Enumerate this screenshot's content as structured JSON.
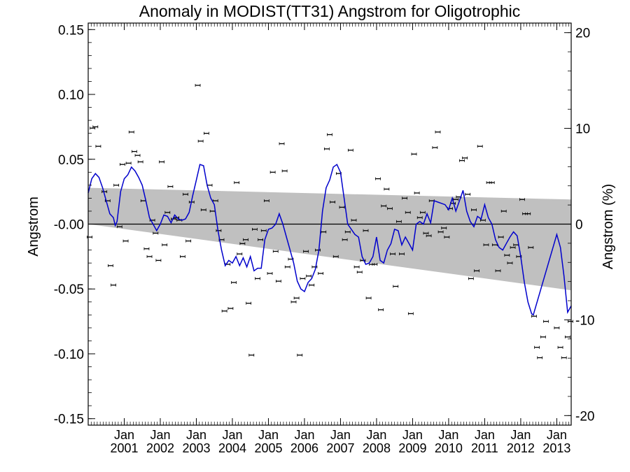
{
  "chart_data": {
    "type": "scatter",
    "title": "Anomaly in MODIST(TT31) Angstrom for Oligotrophic",
    "ylabel": "Angstrom",
    "y2label": "Angstrom (%)",
    "xlim": [
      2000.0,
      2013.4
    ],
    "ylim": [
      -0.155,
      0.155
    ],
    "y2lim": [
      -21,
      21
    ],
    "yticks": [
      "0.15",
      "0.10",
      "0.05",
      "-0.00",
      "-0.05",
      "-0.10",
      "-0.15"
    ],
    "y2ticks": [
      "20",
      "10",
      "0",
      "-10",
      "-20"
    ],
    "xtick_labels": [
      {
        "month": "Jan",
        "year": "2001"
      },
      {
        "month": "Jan",
        "year": "2002"
      },
      {
        "month": "Jan",
        "year": "2003"
      },
      {
        "month": "Jan",
        "year": "2004"
      },
      {
        "month": "Jan",
        "year": "2005"
      },
      {
        "month": "Jan",
        "year": "2006"
      },
      {
        "month": "Jan",
        "year": "2007"
      },
      {
        "month": "Jan",
        "year": "2008"
      },
      {
        "month": "Jan",
        "year": "2009"
      },
      {
        "month": "Jan",
        "year": "2010"
      },
      {
        "month": "Jan",
        "year": "2011"
      },
      {
        "month": "Jan",
        "year": "2012"
      },
      {
        "month": "Jan",
        "year": "2013"
      }
    ],
    "zero_line": 0,
    "trend_band": {
      "upper": [
        [
          2000.0,
          0.028
        ],
        [
          2013.4,
          0.019
        ]
      ],
      "lower": [
        [
          2000.0,
          0.0
        ],
        [
          2013.4,
          -0.051
        ]
      ],
      "color": "#c0c0c0"
    },
    "smoothed_series": {
      "color": "#0000cc",
      "points": [
        [
          2000.0,
          0.024
        ],
        [
          2000.1,
          0.035
        ],
        [
          2000.2,
          0.039
        ],
        [
          2000.3,
          0.036
        ],
        [
          2000.4,
          0.028
        ],
        [
          2000.5,
          0.018
        ],
        [
          2000.6,
          0.008
        ],
        [
          2000.7,
          0.005
        ],
        [
          2000.75,
          -0.001
        ],
        [
          2000.8,
          0.002
        ],
        [
          2000.9,
          0.025
        ],
        [
          2001.0,
          0.035
        ],
        [
          2001.1,
          0.038
        ],
        [
          2001.2,
          0.044
        ],
        [
          2001.3,
          0.041
        ],
        [
          2001.4,
          0.036
        ],
        [
          2001.5,
          0.03
        ],
        [
          2001.6,
          0.018
        ],
        [
          2001.7,
          0.005
        ],
        [
          2001.8,
          0.0
        ],
        [
          2001.9,
          -0.005
        ],
        [
          2002.0,
          0.0
        ],
        [
          2002.1,
          0.007
        ],
        [
          2002.2,
          0.006
        ],
        [
          2002.3,
          0.001
        ],
        [
          2002.4,
          0.007
        ],
        [
          2002.5,
          0.004
        ],
        [
          2002.6,
          0.003
        ],
        [
          2002.7,
          0.004
        ],
        [
          2002.8,
          0.009
        ],
        [
          2002.9,
          0.022
        ],
        [
          2003.0,
          0.034
        ],
        [
          2003.1,
          0.046
        ],
        [
          2003.2,
          0.045
        ],
        [
          2003.3,
          0.03
        ],
        [
          2003.4,
          0.02
        ],
        [
          2003.5,
          0.015
        ],
        [
          2003.6,
          -0.005
        ],
        [
          2003.7,
          -0.02
        ],
        [
          2003.8,
          -0.032
        ],
        [
          2003.9,
          -0.028
        ],
        [
          2004.0,
          -0.03
        ],
        [
          2004.1,
          -0.025
        ],
        [
          2004.2,
          -0.032
        ],
        [
          2004.3,
          -0.026
        ],
        [
          2004.4,
          -0.033
        ],
        [
          2004.5,
          -0.025
        ],
        [
          2004.6,
          -0.036
        ],
        [
          2004.7,
          -0.034
        ],
        [
          2004.8,
          -0.034
        ],
        [
          2004.9,
          -0.012
        ],
        [
          2005.0,
          -0.004
        ],
        [
          2005.1,
          -0.003
        ],
        [
          2005.2,
          0.0
        ],
        [
          2005.3,
          0.008
        ],
        [
          2005.4,
          0.0
        ],
        [
          2005.5,
          -0.01
        ],
        [
          2005.6,
          -0.02
        ],
        [
          2005.7,
          -0.03
        ],
        [
          2005.8,
          -0.044
        ],
        [
          2005.9,
          -0.05
        ],
        [
          2006.0,
          -0.052
        ],
        [
          2006.1,
          -0.045
        ],
        [
          2006.2,
          -0.042
        ],
        [
          2006.3,
          -0.035
        ],
        [
          2006.4,
          -0.02
        ],
        [
          2006.5,
          0.01
        ],
        [
          2006.6,
          0.028
        ],
        [
          2006.7,
          0.034
        ],
        [
          2006.8,
          0.044
        ],
        [
          2006.9,
          0.046
        ],
        [
          2007.0,
          0.04
        ],
        [
          2007.1,
          0.02
        ],
        [
          2007.2,
          0.0
        ],
        [
          2007.3,
          -0.004
        ],
        [
          2007.4,
          -0.008
        ],
        [
          2007.5,
          -0.01
        ],
        [
          2007.6,
          -0.025
        ],
        [
          2007.7,
          -0.031
        ],
        [
          2007.8,
          -0.03
        ],
        [
          2007.9,
          -0.025
        ],
        [
          2008.0,
          -0.01
        ],
        [
          2008.1,
          -0.028
        ],
        [
          2008.2,
          -0.03
        ],
        [
          2008.3,
          -0.02
        ],
        [
          2008.4,
          -0.015
        ],
        [
          2008.5,
          -0.004
        ],
        [
          2008.6,
          -0.005
        ],
        [
          2008.7,
          -0.016
        ],
        [
          2008.8,
          -0.01
        ],
        [
          2008.9,
          -0.015
        ],
        [
          2009.0,
          -0.02
        ],
        [
          2009.1,
          0.0
        ],
        [
          2009.2,
          0.002
        ],
        [
          2009.3,
          0.0
        ],
        [
          2009.4,
          0.008
        ],
        [
          2009.5,
          0.001
        ],
        [
          2009.6,
          0.018
        ],
        [
          2009.7,
          0.017
        ],
        [
          2009.8,
          0.016
        ],
        [
          2009.9,
          0.015
        ],
        [
          2010.0,
          0.011
        ],
        [
          2010.1,
          0.02
        ],
        [
          2010.2,
          0.01
        ],
        [
          2010.3,
          0.018
        ],
        [
          2010.4,
          0.026
        ],
        [
          2010.5,
          0.01
        ],
        [
          2010.6,
          0.002
        ],
        [
          2010.7,
          -0.002
        ],
        [
          2010.8,
          0.006
        ],
        [
          2010.9,
          0.004
        ],
        [
          2011.0,
          0.015
        ],
        [
          2011.1,
          0.005
        ],
        [
          2011.2,
          0.0
        ],
        [
          2011.3,
          -0.012
        ],
        [
          2011.4,
          -0.018
        ],
        [
          2011.5,
          -0.02
        ],
        [
          2011.6,
          -0.015
        ],
        [
          2011.7,
          -0.01
        ],
        [
          2011.8,
          -0.006
        ],
        [
          2011.9,
          -0.009
        ],
        [
          2012.0,
          -0.025
        ],
        [
          2012.1,
          -0.045
        ],
        [
          2012.2,
          -0.06
        ],
        [
          2012.3,
          -0.069
        ],
        [
          2012.35,
          -0.07
        ],
        [
          2013.0,
          -0.008
        ],
        [
          2013.1,
          -0.018
        ],
        [
          2013.2,
          -0.04
        ],
        [
          2013.3,
          -0.068
        ],
        [
          2013.4,
          -0.063
        ]
      ]
    },
    "monthly_points": [
      [
        2000.04,
        -0.01
      ],
      [
        2000.12,
        0.074
      ],
      [
        2000.2,
        0.075
      ],
      [
        2000.28,
        0.06
      ],
      [
        2000.45,
        0.025
      ],
      [
        2000.54,
        0.018
      ],
      [
        2000.62,
        -0.032
      ],
      [
        2000.7,
        -0.047
      ],
      [
        2000.78,
        0.03
      ],
      [
        2000.87,
        -0.002
      ],
      [
        2000.95,
        0.046
      ],
      [
        2001.04,
        -0.013
      ],
      [
        2001.12,
        0.047
      ],
      [
        2001.2,
        0.071
      ],
      [
        2001.28,
        0.056
      ],
      [
        2001.37,
        0.053
      ],
      [
        2001.45,
        0.048
      ],
      [
        2001.53,
        0.018
      ],
      [
        2001.62,
        -0.019
      ],
      [
        2001.7,
        -0.025
      ],
      [
        2001.78,
        0.003
      ],
      [
        2001.87,
        -0.007
      ],
      [
        2001.95,
        -0.028
      ],
      [
        2002.04,
        0.048
      ],
      [
        2002.12,
        -0.016
      ],
      [
        2002.2,
        0.009
      ],
      [
        2002.28,
        0.029
      ],
      [
        2002.37,
        0.004
      ],
      [
        2002.45,
        0.005
      ],
      [
        2002.53,
        0.003
      ],
      [
        2002.62,
        -0.025
      ],
      [
        2002.7,
        0.023
      ],
      [
        2002.78,
        -0.013
      ],
      [
        2002.87,
        0.017
      ],
      [
        2003.04,
        0.107
      ],
      [
        2003.12,
        0.064
      ],
      [
        2003.2,
        0.011
      ],
      [
        2003.28,
        0.07
      ],
      [
        2003.37,
        0.03
      ],
      [
        2003.45,
        0.01
      ],
      [
        2003.53,
        0.018
      ],
      [
        2003.62,
        -0.005
      ],
      [
        2003.7,
        -0.012
      ],
      [
        2003.78,
        -0.067
      ],
      [
        2003.87,
        -0.031
      ],
      [
        2003.95,
        -0.065
      ],
      [
        2004.04,
        -0.045
      ],
      [
        2004.12,
        0.032
      ],
      [
        2004.2,
        -0.023
      ],
      [
        2004.28,
        -0.015
      ],
      [
        2004.37,
        -0.012
      ],
      [
        2004.45,
        -0.061
      ],
      [
        2004.53,
        -0.101
      ],
      [
        2004.62,
        -0.004
      ],
      [
        2004.7,
        -0.042
      ],
      [
        2004.78,
        -0.012
      ],
      [
        2004.87,
        -0.005
      ],
      [
        2004.95,
        0.018
      ],
      [
        2005.04,
        -0.038
      ],
      [
        2005.12,
        0.04
      ],
      [
        2005.2,
        -0.021
      ],
      [
        2005.28,
        -0.044
      ],
      [
        2005.37,
        0.062
      ],
      [
        2005.45,
        0.041
      ],
      [
        2005.53,
        -0.033
      ],
      [
        2005.62,
        -0.027
      ],
      [
        2005.7,
        -0.06
      ],
      [
        2005.78,
        -0.057
      ],
      [
        2005.87,
        -0.101
      ],
      [
        2005.95,
        -0.042
      ],
      [
        2006.04,
        -0.021
      ],
      [
        2006.12,
        -0.04
      ],
      [
        2006.2,
        -0.047
      ],
      [
        2006.28,
        -0.033
      ],
      [
        2006.37,
        -0.02
      ],
      [
        2006.45,
        -0.038
      ],
      [
        2006.53,
        -0.006
      ],
      [
        2006.62,
        0.058
      ],
      [
        2006.7,
        0.069
      ],
      [
        2006.78,
        0.017
      ],
      [
        2006.87,
        -0.025
      ],
      [
        2006.95,
        0.039
      ],
      [
        2007.04,
        0.013
      ],
      [
        2007.12,
        -0.012
      ],
      [
        2007.2,
        -0.006
      ],
      [
        2007.28,
        0.057
      ],
      [
        2007.37,
        0.003
      ],
      [
        2007.45,
        -0.033
      ],
      [
        2007.53,
        -0.037
      ],
      [
        2007.62,
        -0.028
      ],
      [
        2007.7,
        -0.005
      ],
      [
        2007.78,
        -0.057
      ],
      [
        2007.87,
        -0.031
      ],
      [
        2007.95,
        -0.031
      ],
      [
        2008.04,
        0.035
      ],
      [
        2008.12,
        -0.066
      ],
      [
        2008.2,
        0.014
      ],
      [
        2008.28,
        0.027
      ],
      [
        2008.37,
        0.012
      ],
      [
        2008.45,
        -0.023
      ],
      [
        2008.53,
        -0.048
      ],
      [
        2008.62,
        0.002
      ],
      [
        2008.7,
        -0.023
      ],
      [
        2008.78,
        0.02
      ],
      [
        2008.87,
        0.009
      ],
      [
        2008.95,
        -0.069
      ],
      [
        2009.04,
        0.054
      ],
      [
        2009.12,
        0.024
      ],
      [
        2009.2,
        0.005
      ],
      [
        2009.28,
        0.009
      ],
      [
        2009.37,
        -0.007
      ],
      [
        2009.45,
        -0.009
      ],
      [
        2009.53,
        0.018
      ],
      [
        2009.62,
        0.059
      ],
      [
        2009.7,
        0.071
      ],
      [
        2009.78,
        -0.006
      ],
      [
        2009.87,
        -0.003
      ],
      [
        2009.95,
        -0.01
      ],
      [
        2010.04,
        0.012
      ],
      [
        2010.12,
        0.016
      ],
      [
        2010.2,
        0.019
      ],
      [
        2010.28,
        0.021
      ],
      [
        2010.37,
        0.049
      ],
      [
        2010.45,
        0.051
      ],
      [
        2010.53,
        0.023
      ],
      [
        2010.62,
        -0.042
      ],
      [
        2010.7,
        0.011
      ],
      [
        2010.78,
        -0.036
      ],
      [
        2010.87,
        0.06
      ],
      [
        2010.95,
        0.003
      ],
      [
        2011.04,
        -0.016
      ],
      [
        2011.12,
        0.032
      ],
      [
        2011.2,
        0.032
      ],
      [
        2011.28,
        -0.016
      ],
      [
        2011.37,
        -0.036
      ],
      [
        2011.45,
        -0.01
      ],
      [
        2011.53,
        0.01
      ],
      [
        2011.62,
        -0.024
      ],
      [
        2011.7,
        -0.03
      ],
      [
        2011.78,
        -0.018
      ],
      [
        2011.87,
        -0.016
      ],
      [
        2011.95,
        -0.025
      ],
      [
        2012.04,
        0.019
      ],
      [
        2012.12,
        0.008
      ],
      [
        2012.2,
        0.008
      ],
      [
        2012.28,
        -0.018
      ],
      [
        2012.37,
        -0.071
      ],
      [
        2012.45,
        -0.095
      ],
      [
        2012.53,
        -0.103
      ],
      [
        2012.62,
        -0.087
      ],
      [
        2012.7,
        -0.075
      ],
      [
        2013.0,
        -0.08
      ],
      [
        2013.1,
        -0.095
      ],
      [
        2013.2,
        -0.103
      ],
      [
        2013.3,
        -0.087
      ],
      [
        2013.38,
        -0.075
      ]
    ]
  }
}
